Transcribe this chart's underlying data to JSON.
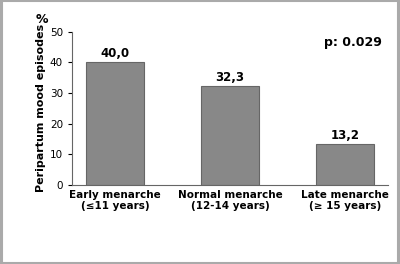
{
  "categories": [
    "Early menarche\n(≤11 years)",
    "Normal menarche\n(12-14 years)",
    "Late menarche\n(≥ 15 years)"
  ],
  "values": [
    40.0,
    32.3,
    13.2
  ],
  "bar_color": "#888888",
  "bar_edge_color": "#666666",
  "ylabel": "Peripartum mood episodes",
  "percent_label": "%",
  "ylim": [
    0,
    50
  ],
  "yticks": [
    0,
    10,
    20,
    30,
    40,
    50
  ],
  "annotation": "p: 0.029",
  "annotation_fontsize": 9,
  "annotation_fontweight": "bold",
  "value_labels": [
    "40,0",
    "32,3",
    "13,2"
  ],
  "value_fontsize": 8.5,
  "value_fontweight": "bold",
  "ylabel_fontsize": 8,
  "ylabel_fontweight": "bold",
  "tick_label_fontsize": 7.5,
  "tick_label_fontweight": "bold",
  "ytick_fontsize": 7.5,
  "background_color": "#ffffff",
  "bar_width": 0.5,
  "border_color": "#aaaaaa"
}
